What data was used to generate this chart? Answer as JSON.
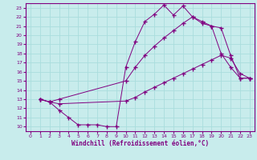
{
  "background_color": "#c8ecec",
  "grid_color": "#aadddd",
  "line_color": "#800080",
  "xlabel": "Windchill (Refroidissement éolien,°C)",
  "xlim": [
    -0.5,
    23.5
  ],
  "ylim": [
    9.5,
    23.5
  ],
  "xticks": [
    0,
    1,
    2,
    3,
    4,
    5,
    6,
    7,
    8,
    9,
    10,
    11,
    12,
    13,
    14,
    15,
    16,
    17,
    18,
    19,
    20,
    21,
    22,
    23
  ],
  "yticks": [
    10,
    11,
    12,
    13,
    14,
    15,
    16,
    17,
    18,
    19,
    20,
    21,
    22,
    23
  ],
  "line1_x": [
    1,
    2,
    3,
    4,
    5,
    6,
    7,
    8,
    9,
    10,
    11,
    12,
    13,
    14,
    15,
    16,
    17,
    18,
    19,
    20,
    21,
    22,
    23
  ],
  "line1_y": [
    13,
    12.7,
    11.8,
    11.0,
    10.2,
    10.2,
    10.2,
    10.0,
    10.0,
    16.5,
    19.3,
    21.5,
    22.3,
    23.3,
    22.2,
    23.2,
    22.0,
    21.3,
    21.0,
    18.0,
    16.5,
    15.3,
    15.3
  ],
  "line2_x": [
    1,
    2,
    3,
    10,
    11,
    12,
    13,
    14,
    15,
    16,
    17,
    18,
    19,
    20,
    21,
    22,
    23
  ],
  "line2_y": [
    13,
    12.7,
    13.0,
    15.0,
    16.5,
    17.8,
    18.8,
    19.7,
    20.5,
    21.3,
    22.0,
    21.5,
    21.0,
    20.8,
    17.8,
    15.3,
    15.3
  ],
  "line3_x": [
    1,
    2,
    3,
    10,
    11,
    12,
    13,
    14,
    15,
    16,
    17,
    18,
    19,
    20,
    21,
    22,
    23
  ],
  "line3_y": [
    13,
    12.7,
    12.5,
    12.8,
    13.2,
    13.8,
    14.3,
    14.8,
    15.3,
    15.8,
    16.3,
    16.8,
    17.3,
    17.8,
    17.5,
    15.8,
    15.3
  ],
  "tick_fontsize": 4.5,
  "xlabel_fontsize": 5.5,
  "marker_size": 1.8,
  "linewidth": 0.7
}
